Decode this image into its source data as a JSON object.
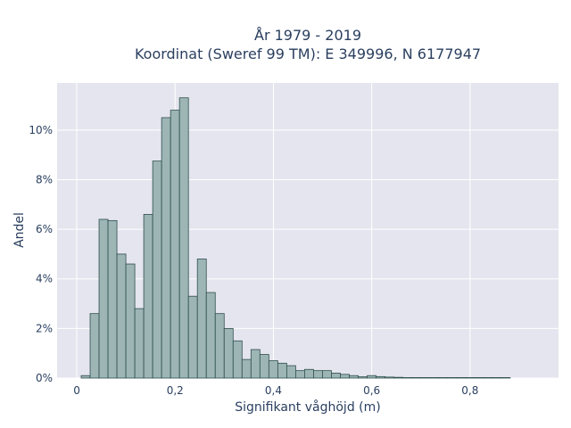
{
  "chart_data": {
    "type": "bar",
    "title_line1": "År 1979 - 2019",
    "title_line2": "Koordinat (Sweref 99 TM): E 349996, N 6177947",
    "xlabel": "Signifikant våghöjd (m)",
    "ylabel": "Andel",
    "xlim": [
      -0.04,
      0.98
    ],
    "ylim": [
      0,
      11.9
    ],
    "x_ticks": [
      0,
      0.2,
      0.4,
      0.6,
      0.8
    ],
    "x_tick_labels": [
      "0",
      "0,2",
      "0,4",
      "0,6",
      "0,8"
    ],
    "y_ticks": [
      0,
      2,
      4,
      6,
      8,
      10
    ],
    "y_tick_labels": [
      "0%",
      "2%",
      "4%",
      "6%",
      "8%",
      "10%"
    ],
    "bin_width": 0.01818,
    "bin_start": 0.009,
    "values": [
      0.1,
      2.6,
      6.4,
      6.35,
      5.0,
      4.6,
      2.8,
      6.6,
      8.75,
      10.5,
      10.8,
      11.3,
      3.3,
      4.8,
      3.45,
      2.6,
      2.0,
      1.5,
      0.75,
      1.15,
      0.95,
      0.7,
      0.6,
      0.5,
      0.3,
      0.35,
      0.3,
      0.3,
      0.2,
      0.15,
      0.1,
      0.05,
      0.1,
      0.06,
      0.04,
      0.03,
      0.02,
      0.02,
      0.02,
      0.02,
      0.02,
      0.02,
      0.02,
      0.02,
      0.02,
      0.02,
      0.02,
      0.02
    ],
    "grid": true,
    "colors": {
      "bar_fill": "#9db5b5",
      "bar_stroke": "#2f4f4f",
      "plot_bg": "#e5e5ef",
      "grid": "#ffffff"
    }
  }
}
